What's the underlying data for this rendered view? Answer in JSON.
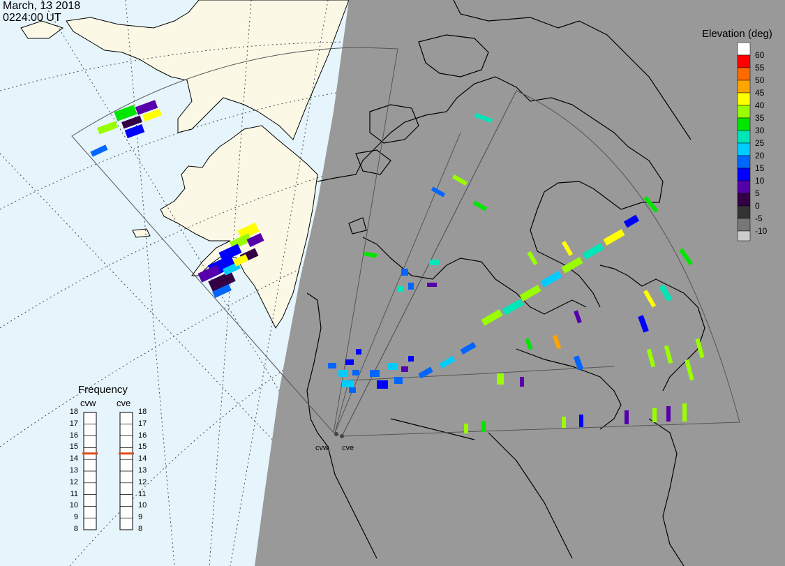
{
  "header": {
    "date": "March, 13 2018",
    "time": "0224:00 UT"
  },
  "elevation_scale": {
    "title": "Elevation (deg)",
    "levels": [
      {
        "label": "60",
        "color": "#ffffff"
      },
      {
        "label": "55",
        "color": "#ff0000"
      },
      {
        "label": "50",
        "color": "#ff6a00"
      },
      {
        "label": "45",
        "color": "#ffa500"
      },
      {
        "label": "40",
        "color": "#ffff00"
      },
      {
        "label": "35",
        "color": "#99ff00"
      },
      {
        "label": "30",
        "color": "#00e600"
      },
      {
        "label": "25",
        "color": "#00e6b8"
      },
      {
        "label": "20",
        "color": "#00ccff"
      },
      {
        "label": "15",
        "color": "#0066ff"
      },
      {
        "label": "10",
        "color": "#0000ff"
      },
      {
        "label": "5",
        "color": "#5500aa"
      },
      {
        "label": "0",
        "color": "#330044"
      },
      {
        "label": "-5",
        "color": "#333333"
      },
      {
        "label": "-10",
        "color": "#777777"
      }
    ],
    "bottom_label": "-10",
    "bottom_color": "#cccccc"
  },
  "frequency": {
    "title": "Frequency",
    "radars": [
      "cvw",
      "cve"
    ],
    "ticks": [
      "18",
      "17",
      "16",
      "15",
      "14",
      "13",
      "12",
      "11",
      "10",
      "9",
      "8"
    ],
    "cvw_mhz": 15,
    "cve_mhz": 15,
    "marker_color": "#e04a1a"
  },
  "sites": {
    "cvw": "cvw",
    "cve": "cve"
  },
  "map": {
    "ocean_color": "#e6f4fb",
    "land_color": "#fbf8e6",
    "night_color": "#999999"
  }
}
